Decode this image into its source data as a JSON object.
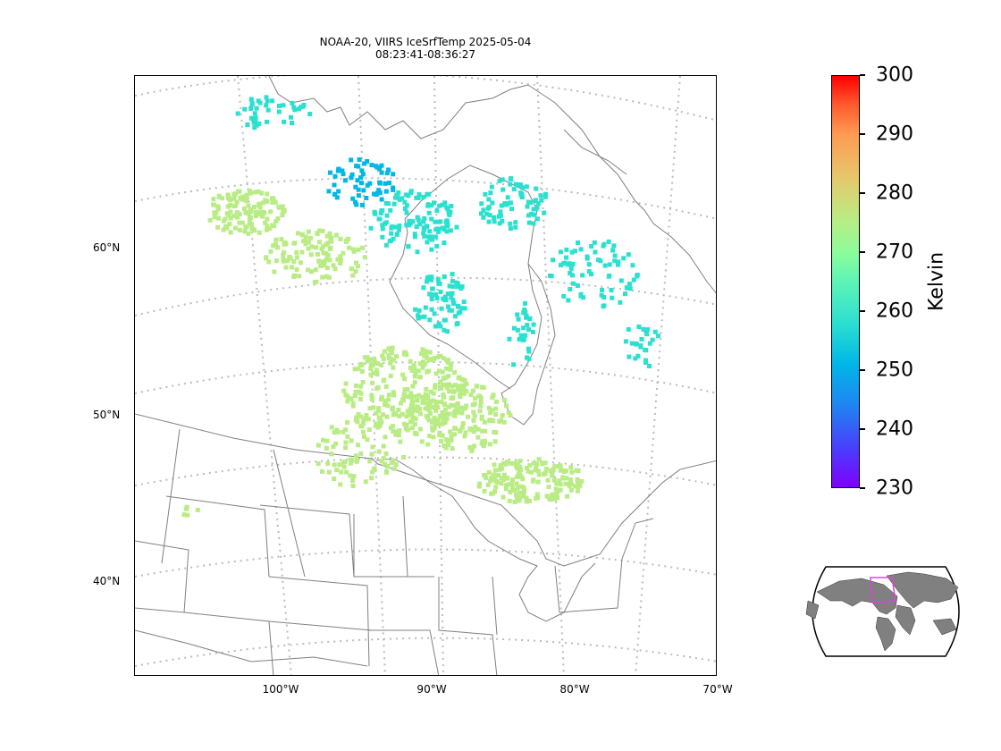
{
  "title": {
    "line1": "NOAA-20, VIIRS IceSrfTemp 2025-05-04",
    "line2": "08:23:41-08:36:27"
  },
  "map": {
    "lat_labels": [
      "60°N",
      "50°N",
      "40°N"
    ],
    "lon_labels": [
      "100°W",
      "90°W",
      "80°W",
      "70°W"
    ],
    "graticule_style": "dotted-gray",
    "boundary_color": "#808080",
    "projection": "Lambert conformal (North America)"
  },
  "colorbar": {
    "title": "Kelvin",
    "ticks": [
      "300",
      "290",
      "280",
      "270",
      "260",
      "250",
      "240",
      "230"
    ],
    "range": [
      230,
      300
    ],
    "colormap": "rainbow"
  },
  "data_summary": {
    "variable": "Ice surface temperature",
    "units": "Kelvin",
    "observed_range_approx": [
      248,
      272
    ],
    "colors": {
      "cold": "#00b7e8",
      "mid": "#2ce0d0",
      "warm": "#b9ec84"
    }
  },
  "inset": {
    "name": "world-locator",
    "highlight_color": "#e040e0",
    "land_color": "#808080"
  }
}
